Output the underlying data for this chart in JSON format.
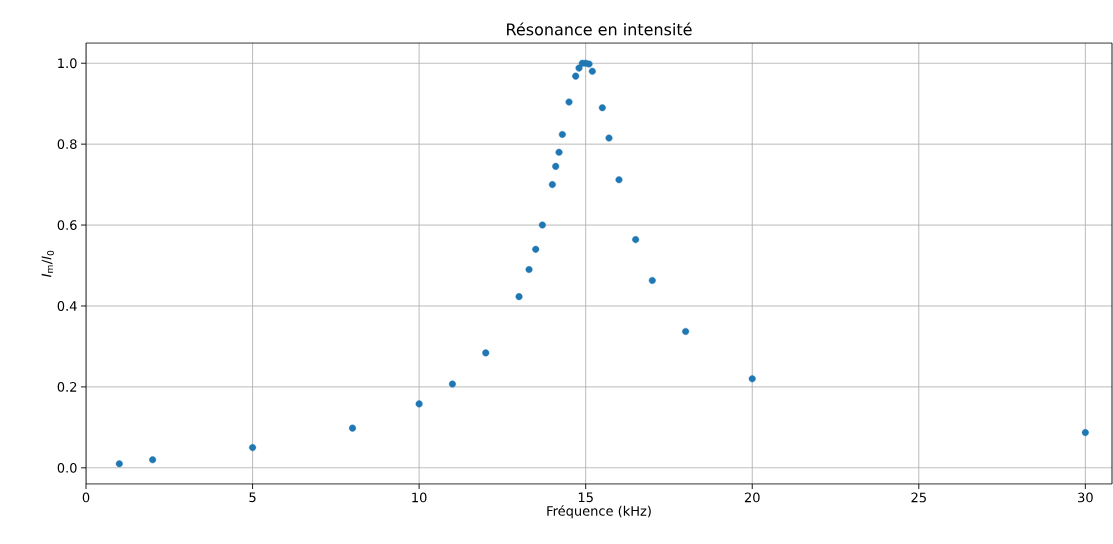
{
  "chart_data": {
    "type": "scatter",
    "title": "Résonance en intensité",
    "xlabel": "Fréquence (kHz)",
    "ylabel": "*I*$_{m}$/*I*$_{0}$",
    "x": [
      1,
      2,
      5,
      8,
      10,
      11,
      12,
      13,
      13.3,
      13.5,
      13.7,
      14.0,
      14.1,
      14.2,
      14.3,
      14.5,
      14.7,
      14.8,
      14.9,
      15.0,
      15.1,
      15.2,
      15.5,
      15.7,
      16,
      16.5,
      17,
      18,
      20,
      30
    ],
    "series": [
      {
        "color": "#1f77b4",
        "values": [
          0.01,
          0.02,
          0.05,
          0.098,
          0.158,
          0.207,
          0.284,
          0.423,
          0.49,
          0.54,
          0.6,
          0.7,
          0.745,
          0.78,
          0.824,
          0.904,
          0.968,
          0.988,
          1.0,
          1.0,
          0.998,
          0.98,
          0.89,
          0.815,
          0.712,
          0.564,
          0.463,
          0.337,
          0.22,
          0.087
        ]
      }
    ],
    "xlim": [
      0,
      30.8
    ],
    "ylim": [
      -0.04,
      1.05
    ],
    "xticks": [
      0,
      5,
      10,
      15,
      20,
      25,
      30
    ],
    "yticks": [
      {
        "value": 0,
        "label": "0.0"
      },
      {
        "value": 0.2,
        "label": "0.2"
      },
      {
        "value": 0.4,
        "label": "0.4"
      },
      {
        "value": 0.6,
        "label": "0.6"
      },
      {
        "value": 0.8,
        "label": "0.8"
      },
      {
        "value": 1.0,
        "label": "1.0"
      }
    ],
    "grid": true,
    "marker": "circle"
  }
}
